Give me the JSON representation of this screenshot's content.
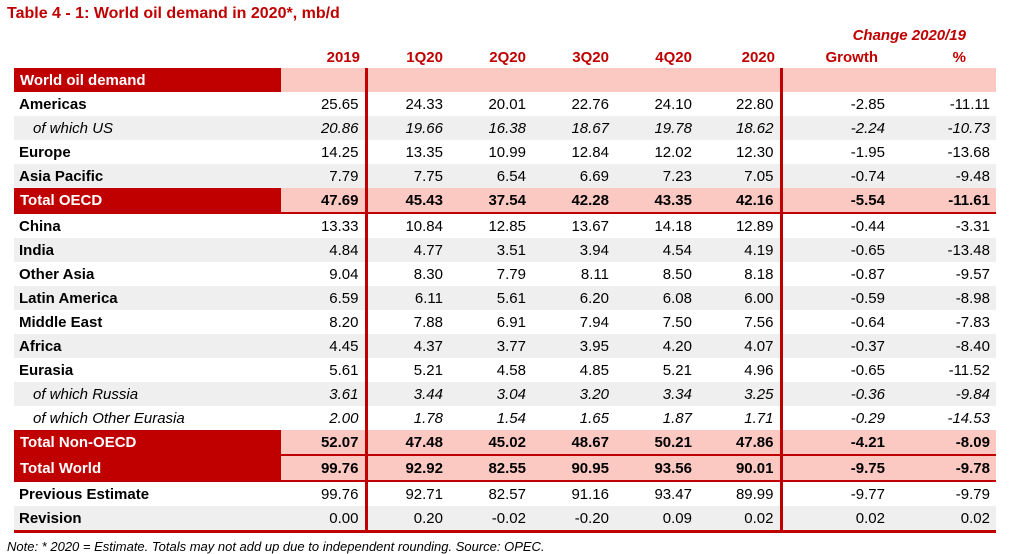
{
  "page": {
    "title": "Table 4 - 1: World oil demand in 2020*, mb/d",
    "change_header": "Change 2020/19",
    "note": "Note: * 2020 = Estimate. Totals may not add up due to independent rounding. Source: OPEC."
  },
  "colors": {
    "brand_red": "#c00000",
    "band_pink": "#fbc8c2",
    "row_stripe": "#efefef",
    "header_text": "#c00000"
  },
  "chart_data": {
    "type": "table",
    "title": "Table 4 - 1: World oil demand in 2020*, mb/d",
    "unit": "mb/d",
    "columns": [
      "",
      "2019",
      "1Q20",
      "2Q20",
      "3Q20",
      "4Q20",
      "2020",
      "Growth",
      "%"
    ],
    "change_group_label": "Change 2020/19",
    "rows": [
      {
        "label": "World oil demand",
        "style": "band",
        "shade": false,
        "rule": false,
        "values": [
          "",
          "",
          "",
          "",
          "",
          "",
          "",
          ""
        ]
      },
      {
        "label": "Americas",
        "style": "normal",
        "shade": false,
        "rule": false,
        "values": [
          "25.65",
          "24.33",
          "20.01",
          "22.76",
          "24.10",
          "22.80",
          "-2.85",
          "-11.11"
        ]
      },
      {
        "label": "of which US",
        "style": "sub",
        "shade": true,
        "rule": false,
        "values": [
          "20.86",
          "19.66",
          "16.38",
          "18.67",
          "19.78",
          "18.62",
          "-2.24",
          "-10.73"
        ]
      },
      {
        "label": "Europe",
        "style": "normal",
        "shade": false,
        "rule": false,
        "values": [
          "14.25",
          "13.35",
          "10.99",
          "12.84",
          "12.02",
          "12.30",
          "-1.95",
          "-13.68"
        ]
      },
      {
        "label": "Asia Pacific",
        "style": "normal",
        "shade": true,
        "rule": false,
        "values": [
          "7.79",
          "7.75",
          "6.54",
          "6.69",
          "7.23",
          "7.05",
          "-0.74",
          "-9.48"
        ]
      },
      {
        "label": "Total OECD",
        "style": "band",
        "shade": false,
        "rule": true,
        "values": [
          "47.69",
          "45.43",
          "37.54",
          "42.28",
          "43.35",
          "42.16",
          "-5.54",
          "-11.61"
        ]
      },
      {
        "label": "China",
        "style": "normal",
        "shade": false,
        "rule": false,
        "values": [
          "13.33",
          "10.84",
          "12.85",
          "13.67",
          "14.18",
          "12.89",
          "-0.44",
          "-3.31"
        ]
      },
      {
        "label": "India",
        "style": "normal",
        "shade": true,
        "rule": false,
        "values": [
          "4.84",
          "4.77",
          "3.51",
          "3.94",
          "4.54",
          "4.19",
          "-0.65",
          "-13.48"
        ]
      },
      {
        "label": "Other Asia",
        "style": "normal",
        "shade": false,
        "rule": false,
        "values": [
          "9.04",
          "8.30",
          "7.79",
          "8.11",
          "8.50",
          "8.18",
          "-0.87",
          "-9.57"
        ]
      },
      {
        "label": "Latin America",
        "style": "normal",
        "shade": true,
        "rule": false,
        "values": [
          "6.59",
          "6.11",
          "5.61",
          "6.20",
          "6.08",
          "6.00",
          "-0.59",
          "-8.98"
        ]
      },
      {
        "label": "Middle East",
        "style": "normal",
        "shade": false,
        "rule": false,
        "values": [
          "8.20",
          "7.88",
          "6.91",
          "7.94",
          "7.50",
          "7.56",
          "-0.64",
          "-7.83"
        ]
      },
      {
        "label": "Africa",
        "style": "normal",
        "shade": true,
        "rule": false,
        "values": [
          "4.45",
          "4.37",
          "3.77",
          "3.95",
          "4.20",
          "4.07",
          "-0.37",
          "-8.40"
        ]
      },
      {
        "label": "Eurasia",
        "style": "normal",
        "shade": false,
        "rule": false,
        "values": [
          "5.61",
          "5.21",
          "4.58",
          "4.85",
          "5.21",
          "4.96",
          "-0.65",
          "-11.52"
        ]
      },
      {
        "label": "of which Russia",
        "style": "sub",
        "shade": true,
        "rule": false,
        "values": [
          "3.61",
          "3.44",
          "3.04",
          "3.20",
          "3.34",
          "3.25",
          "-0.36",
          "-9.84"
        ]
      },
      {
        "label": "of which Other Eurasia",
        "style": "sub",
        "shade": false,
        "rule": false,
        "values": [
          "2.00",
          "1.78",
          "1.54",
          "1.65",
          "1.87",
          "1.71",
          "-0.29",
          "-14.53"
        ]
      },
      {
        "label": "Total Non-OECD",
        "style": "band",
        "shade": false,
        "rule": true,
        "values": [
          "52.07",
          "47.48",
          "45.02",
          "48.67",
          "50.21",
          "47.86",
          "-4.21",
          "-8.09"
        ]
      },
      {
        "label": "Total World",
        "style": "band",
        "shade": false,
        "rule": true,
        "values": [
          "99.76",
          "92.92",
          "82.55",
          "90.95",
          "93.56",
          "90.01",
          "-9.75",
          "-9.78"
        ]
      },
      {
        "label": "Previous Estimate",
        "style": "normal",
        "shade": false,
        "rule": false,
        "values": [
          "99.76",
          "92.71",
          "82.57",
          "91.16",
          "93.47",
          "89.99",
          "-9.77",
          "-9.79"
        ]
      },
      {
        "label": "Revision",
        "style": "normal",
        "shade": true,
        "rule": false,
        "values": [
          "0.00",
          "0.20",
          "-0.02",
          "-0.20",
          "0.09",
          "0.02",
          "0.02",
          "0.02"
        ]
      }
    ]
  }
}
